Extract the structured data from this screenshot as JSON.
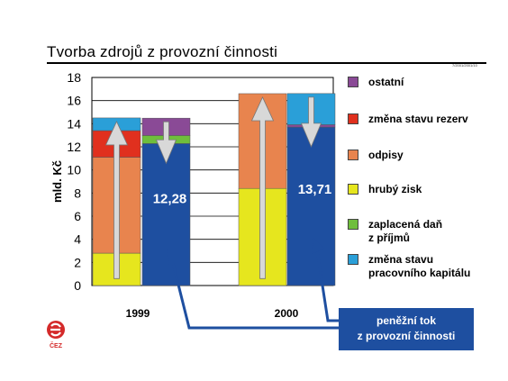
{
  "title": "Tvorba zdrojů z provozní činnosti",
  "source_tag": "7/2001/2001/10",
  "callout_lines": [
    "peněžní tok",
    "z provozní činnosti"
  ],
  "logo_text": "ČEZ",
  "chart_data": {
    "type": "bar",
    "ylabel": "mld. Kč",
    "ylim": [
      0,
      18
    ],
    "yticks": [
      0,
      2,
      4,
      6,
      8,
      10,
      12,
      14,
      16,
      18
    ],
    "categories": [
      "1999",
      "2000"
    ],
    "grid": true,
    "legend_position": "right",
    "stack_order": [
      "hrubý zisk",
      "odpisy",
      "změna stavu rezerv",
      "změna stavu pracovního kapitálu",
      "ostatní",
      "zaplacená daň z příjmů"
    ],
    "series": [
      {
        "name": "ostatní",
        "color": "#8a4a96",
        "values": [
          0,
          0
        ],
        "right_values": [
          1.5,
          0.2
        ]
      },
      {
        "name": "změna stavu rezerv",
        "color": "#e0301e",
        "values": [
          2.3,
          0
        ],
        "right_values": [
          0,
          0
        ]
      },
      {
        "name": "odpisy",
        "color": "#e8844e",
        "values": [
          8.3,
          8.2
        ],
        "right_values": [
          0,
          0
        ]
      },
      {
        "name": "hrubý zisk",
        "color": "#e6e61e",
        "values": [
          2.8,
          8.4
        ],
        "right_values": [
          0,
          0
        ]
      },
      {
        "name": "zaplacená daň z příjmů",
        "color": "#6fbe3c",
        "values": [
          0,
          0
        ],
        "right_values": [
          0.7,
          0
        ]
      },
      {
        "name": "změna stavu pracovního kapitálu",
        "color": "#2a9fd8",
        "values": [
          1.1,
          0
        ],
        "right_values": [
          0,
          2.7
        ]
      }
    ],
    "legend_labels": {
      "ostatní": [
        "ostatní"
      ],
      "změna stavu rezerv": [
        "změna stavu rezerv"
      ],
      "odpisy": [
        "odpisy"
      ],
      "hrubý zisk": [
        "hrubý zisk"
      ],
      "zaplacená daň z příjmů": [
        "zaplacená daň",
        "z příjmů"
      ],
      "změna stavu pracovního kapitálu": [
        "změna stavu",
        "pracovního kapitálu"
      ]
    },
    "right_bar_color": "#1e4fa0",
    "cash_flow": [
      {
        "category": "1999",
        "value": 12.28,
        "label": "12,28"
      },
      {
        "category": "2000",
        "value": 13.71,
        "label": "13,71"
      }
    ]
  }
}
